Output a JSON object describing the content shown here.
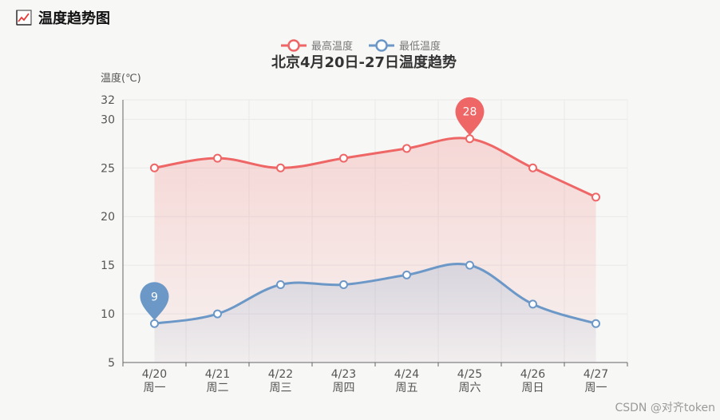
{
  "page": {
    "title": "温度趋势图",
    "watermark": "CSDN @对齐token"
  },
  "colors": {
    "max_series": "#ee6666",
    "min_series": "#6c98c8"
  },
  "chart_data": {
    "type": "line",
    "title": "北京4月20日-27日温度趋势",
    "ylabel": "温度(℃)",
    "ylim": [
      5,
      32
    ],
    "yticks": [
      5,
      10,
      15,
      20,
      25,
      30,
      32
    ],
    "categories": [
      "4/20",
      "4/21",
      "4/22",
      "4/23",
      "4/24",
      "4/25",
      "4/26",
      "4/27"
    ],
    "sublabels": [
      "周一",
      "周二",
      "周三",
      "周四",
      "周五",
      "周六",
      "周日",
      "周一"
    ],
    "smooth": true,
    "area": true,
    "grid": true,
    "legend_position": "top-center",
    "series": [
      {
        "name": "最高温度",
        "color": "#ee6666",
        "values": [
          25,
          26,
          25,
          26,
          27,
          28,
          25,
          22
        ],
        "mark_point": {
          "label": "28",
          "index": 5
        }
      },
      {
        "name": "最低温度",
        "color": "#6c98c8",
        "values": [
          9,
          10,
          13,
          13,
          14,
          15,
          11,
          9
        ],
        "mark_point": {
          "label": "9",
          "index": 0
        }
      }
    ]
  }
}
